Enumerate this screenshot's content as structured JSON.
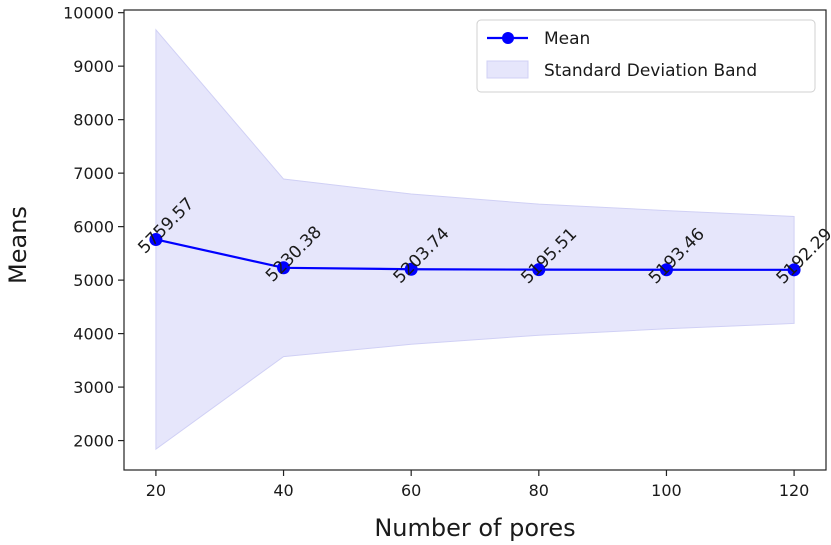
{
  "chart_data": {
    "type": "line",
    "title": "",
    "xlabel": "Number of pores",
    "ylabel": "Means",
    "x": [
      20,
      40,
      60,
      80,
      100,
      120
    ],
    "xlim": [
      15,
      125
    ],
    "ylim": [
      1450,
      10050
    ],
    "xticks": [
      20,
      40,
      60,
      80,
      100,
      120
    ],
    "xtick_labels": [
      "20",
      "40",
      "60",
      "80",
      "100",
      "120"
    ],
    "yticks": [
      2000,
      3000,
      4000,
      5000,
      6000,
      7000,
      8000,
      9000,
      10000
    ],
    "ytick_labels": [
      "2000",
      "3000",
      "4000",
      "5000",
      "6000",
      "7000",
      "8000",
      "9000",
      "10000"
    ],
    "grid": false,
    "legend_position": "top-right",
    "series": [
      {
        "name": "Mean",
        "values": [
          5759.57,
          5230.38,
          5203.74,
          5195.51,
          5193.46,
          5192.29
        ],
        "labels": [
          "5759.57",
          "5230.38",
          "5203.74",
          "5195.51",
          "5193.46",
          "5192.29"
        ],
        "color": "#0000ff",
        "marker": "circle"
      },
      {
        "name": "Standard Deviation Band",
        "type": "area-band",
        "upper": [
          9680,
          6890,
          6610,
          6420,
          6300,
          6190
        ],
        "lower": [
          1840,
          3570,
          3800,
          3970,
          4090,
          4190
        ],
        "color": "#e6e6fb"
      }
    ]
  }
}
